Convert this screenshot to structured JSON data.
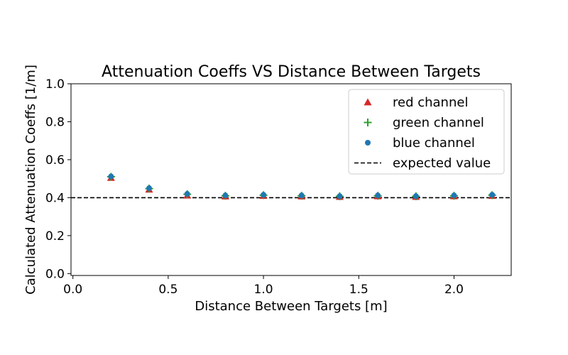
{
  "chart_data": {
    "type": "scatter",
    "title": "Attenuation Coeffs VS Distance Between Targets",
    "xlabel": "Distance Between Targets [m]",
    "ylabel": "Calculated Attenuation Coeffs [1/m]",
    "xlim": [
      -0.01,
      2.3
    ],
    "ylim": [
      -0.01,
      1.0
    ],
    "xticks": [
      0.0,
      0.5,
      1.0,
      1.5,
      2.0
    ],
    "yticks": [
      0.0,
      0.2,
      0.4,
      0.6,
      0.8,
      1.0
    ],
    "xtick_labels": [
      "0.0",
      "0.5",
      "1.0",
      "1.5",
      "2.0"
    ],
    "ytick_labels": [
      "0.0",
      "0.2",
      "0.4",
      "0.6",
      "0.8",
      "1.0"
    ],
    "grid": false,
    "legend_position": "top-right",
    "x": [
      0.2,
      0.4,
      0.6,
      0.8,
      1.0,
      1.2,
      1.4,
      1.6,
      1.8,
      2.0,
      2.2
    ],
    "series": [
      {
        "name": "red channel",
        "marker": "triangle",
        "color": "#d62728",
        "values": [
          0.505,
          0.443,
          0.412,
          0.407,
          0.41,
          0.407,
          0.405,
          0.408,
          0.405,
          0.408,
          0.41
        ]
      },
      {
        "name": "green channel",
        "marker": "plus",
        "color": "#2ca02c",
        "values": [
          0.51,
          0.448,
          0.418,
          0.41,
          0.413,
          0.41,
          0.407,
          0.41,
          0.407,
          0.41,
          0.413
        ]
      },
      {
        "name": "blue channel",
        "marker": "circle",
        "color": "#1f77b4",
        "values": [
          0.512,
          0.45,
          0.42,
          0.412,
          0.415,
          0.412,
          0.408,
          0.412,
          0.408,
          0.412,
          0.415
        ]
      }
    ],
    "reference_line": {
      "name": "expected value",
      "y": 0.4,
      "style": "dashed",
      "color": "#000000"
    }
  }
}
